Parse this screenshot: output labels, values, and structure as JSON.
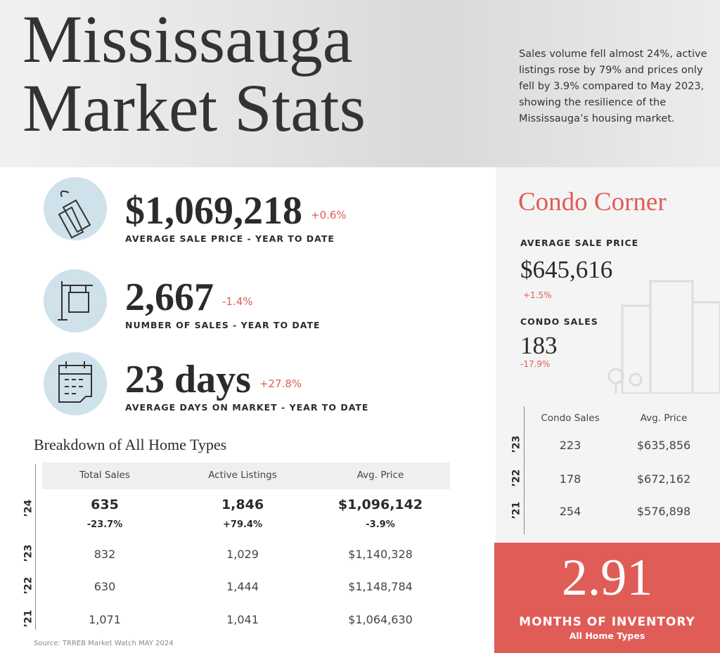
{
  "header": {
    "title_line1": "Mississauga",
    "title_line2": "Market Stats",
    "summary": "Sales volume fell almost 24%, active listings rose by 79% and prices only fell by 3.9% compared to May 2023, showing the resilience of the Mississauga’s housing market."
  },
  "stats": [
    {
      "value": "$1,069,218",
      "change": "+0.6%",
      "label": "AVERAGE SALE PRICE - YEAR TO DATE"
    },
    {
      "value": "2,667",
      "change": "-1.4%",
      "label": "NUMBER OF SALES - YEAR TO DATE"
    },
    {
      "value": "23 days",
      "change": "+27.8%",
      "label": "AVERAGE DAYS ON MARKET - YEAR TO DATE"
    }
  ],
  "breakdown": {
    "title": "Breakdown of All Home Types",
    "columns": [
      "Total Sales",
      "Active Listings",
      "Avg. Price"
    ],
    "rows": [
      {
        "year": "’24",
        "cells": [
          "635",
          "1,846",
          "$1,096,142"
        ],
        "changes": [
          "-23.7%",
          "+79.4%",
          "-3.9%"
        ]
      },
      {
        "year": "’23",
        "cells": [
          "832",
          "1,029",
          "$1,140,328"
        ]
      },
      {
        "year": "’22",
        "cells": [
          "630",
          "1,444",
          "$1,148,784"
        ]
      },
      {
        "year": "’21",
        "cells": [
          "1,071",
          "1,041",
          "$1,064,630"
        ]
      }
    ]
  },
  "source": "Source: TRREB Market Watch MAY 2024",
  "condo": {
    "title": "Condo Corner",
    "stats": [
      {
        "label": "AVERAGE SALE PRICE",
        "value": "$645,616",
        "change": "+1.5%"
      },
      {
        "label": "CONDO SALES",
        "value": "183",
        "change": "-17.9%"
      }
    ],
    "table": {
      "columns": [
        "Condo Sales",
        "Avg. Price"
      ],
      "rows": [
        {
          "year": "’23",
          "cells": [
            "223",
            "$635,856"
          ]
        },
        {
          "year": "’22",
          "cells": [
            "178",
            "$672,162"
          ]
        },
        {
          "year": "’21",
          "cells": [
            "254",
            "$576,898"
          ]
        }
      ]
    }
  },
  "inventory": {
    "value": "2.91",
    "label": "MONTHS OF INVENTORY",
    "sublabel": "All Home Types"
  }
}
